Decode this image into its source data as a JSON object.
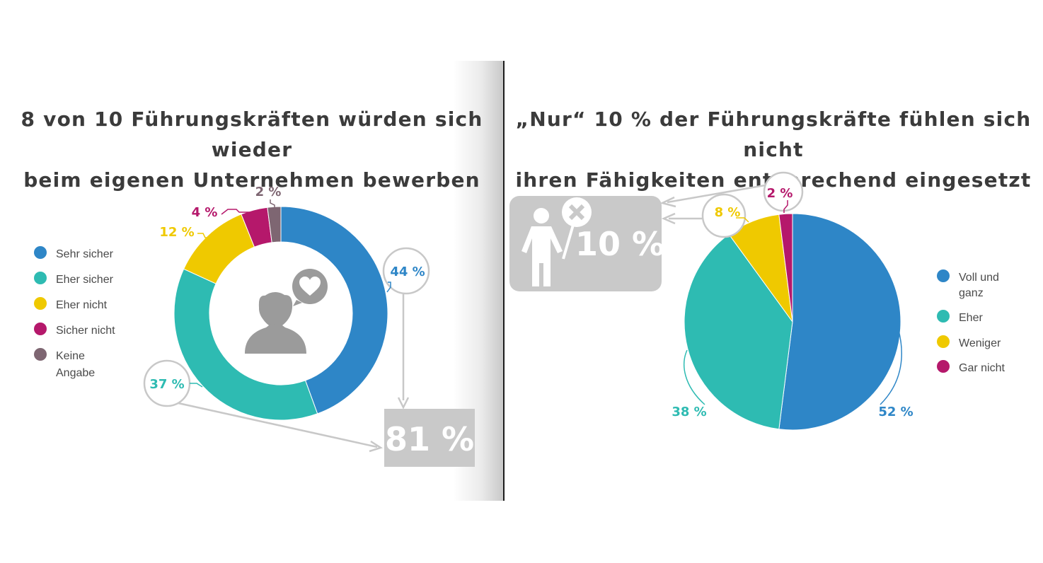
{
  "chart_data": [
    {
      "type": "pie",
      "title": "8 von 10 Führungskräften würden sich wieder beim eigenen Unternehmen bewerben",
      "title_lines": [
        "8 von 10 Führungskräften würden sich wieder",
        "beim eigenen Unternehmen bewerben"
      ],
      "style": "donut",
      "categories": [
        "Sehr sicher",
        "Eher sicher",
        "Eher nicht",
        "Sicher nicht",
        "Keine Angabe"
      ],
      "values": [
        44,
        37,
        12,
        4,
        2
      ],
      "value_labels": [
        "44 %",
        "37 %",
        "12 %",
        "4 %",
        "2 %"
      ],
      "colors": [
        "#2e86c7",
        "#2ebbb2",
        "#efc900",
        "#b5186b",
        "#7e6672"
      ],
      "legend": {
        "placement": "left",
        "items": [
          "Sehr sicher",
          "Eher sicher",
          "Eher nicht",
          "Sicher nicht",
          "Keine Angabe"
        ]
      },
      "annotation": {
        "text": "81 %",
        "sum_of": [
          "Sehr sicher",
          "Eher sicher"
        ],
        "value": 81
      },
      "center_icon": "person-heart-icon"
    },
    {
      "type": "pie",
      "title": "„Nur“ 10 % der Führungskräfte fühlen sich nicht ihren Fähigkeiten entsprechend eingesetzt",
      "title_lines": [
        "„Nur“ 10 % der Führungskräfte fühlen sich nicht",
        "ihren Fähigkeiten entsprechend eingesetzt"
      ],
      "categories": [
        "Voll und ganz",
        "Eher",
        "Weniger",
        "Gar nicht"
      ],
      "values": [
        52,
        38,
        8,
        2
      ],
      "value_labels": [
        "52 %",
        "38 %",
        "8 %",
        "2 %"
      ],
      "colors": [
        "#2e86c7",
        "#2ebbb2",
        "#efc900",
        "#b5186b"
      ],
      "legend": {
        "placement": "right",
        "items": [
          "Voll und ganz",
          "Eher",
          "Weniger",
          "Gar nicht"
        ]
      },
      "annotation": {
        "text": "10 %",
        "sum_of": [
          "Weniger",
          "Gar nicht"
        ],
        "value": 10
      },
      "annotation_icon": "person-cross-sign-icon"
    }
  ]
}
